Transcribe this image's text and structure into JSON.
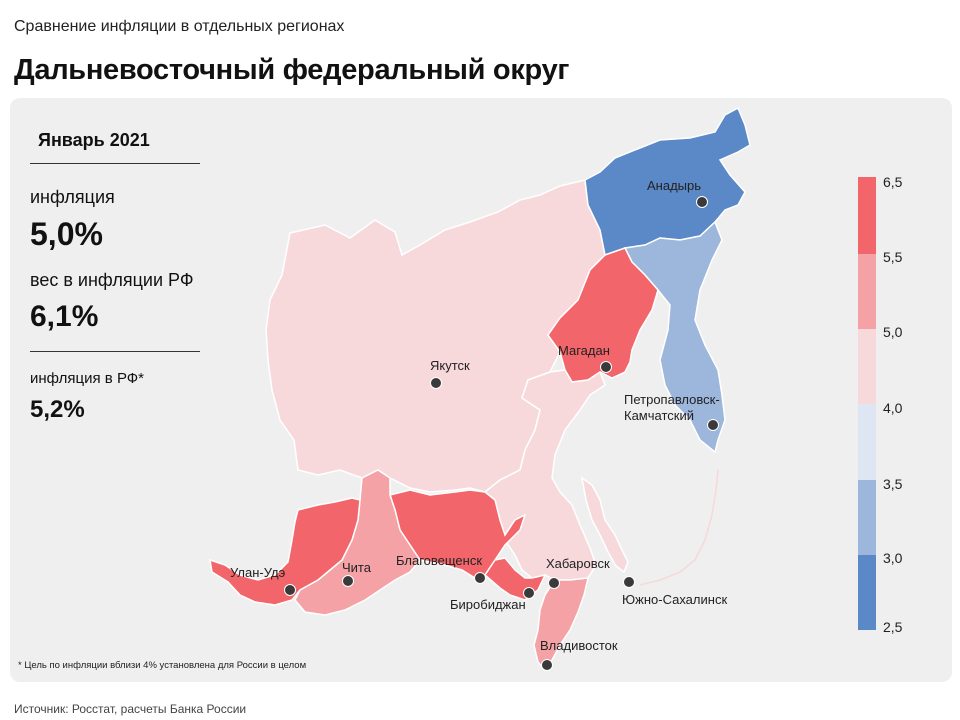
{
  "header": {
    "subtitle": "Сравнение инфляции  в отдельных регионах",
    "title": "Дальневосточный федеральный округ"
  },
  "info": {
    "period": "Январь 2021",
    "inflation_label": "инфляция",
    "inflation_value": "5,0%",
    "weight_label": "вес в инфляции  РФ",
    "weight_value": "6,1%",
    "rf_label": "инфляция  в РФ*",
    "rf_value": "5,2%"
  },
  "footnote": "* Цель по инфляции вблизи 4% установлена для России в целом",
  "source": "Источник: Росстат, расчеты Банка России",
  "colors": {
    "c_6_5": "#f2666b",
    "c_5_5": "#f4a2a6",
    "c_5_0": "#f7d9dc",
    "c_4_0": "#dfe6f3",
    "c_3_5": "#9cb6dc",
    "c_3_0": "#5b88c6"
  },
  "legend": {
    "ticks": [
      "6,5",
      "5,5",
      "5,0",
      "4,0",
      "3,5",
      "3,0",
      "2,5"
    ]
  },
  "cities": [
    {
      "name": "Анадырь",
      "label": "Анадырь"
    },
    {
      "name": "Магадан",
      "label": "Магадан"
    },
    {
      "name": "Якутск",
      "label": "Якутск"
    },
    {
      "name": "Петропавловск",
      "label_l1": "Петропавловск-",
      "label_l2": "Камчатский"
    },
    {
      "name": "Улан-Удэ",
      "label": "Улан-Удэ"
    },
    {
      "name": "Чита",
      "label": "Чита"
    },
    {
      "name": "Благовещенск",
      "label": "Благовещенск"
    },
    {
      "name": "Хабаровск",
      "label": "Хабаровск"
    },
    {
      "name": "Биробиджан",
      "label": "Биробиджан"
    },
    {
      "name": "Южно-Сахалинск",
      "label": "Южно-Сахалинск"
    },
    {
      "name": "Владивосток",
      "label": "Владивосток"
    }
  ]
}
